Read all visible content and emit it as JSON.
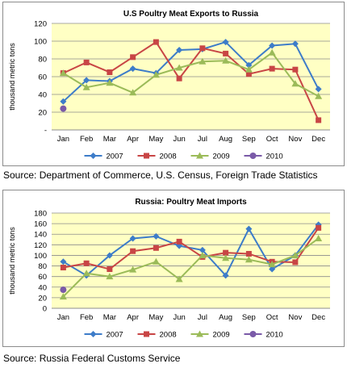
{
  "colors": {
    "plot_bg": "#ffffc4",
    "grid": "#8c8c8c",
    "series": [
      "#3d7cc9",
      "#c84545",
      "#9bbb59",
      "#7a5aa8"
    ]
  },
  "chart_data": [
    {
      "type": "line",
      "title": "U.S Poultry Meat Exports to Russia",
      "ylabel": "thousand metric tons",
      "xlabel": "",
      "ylim": [
        0,
        120
      ],
      "yticks": [
        0,
        20,
        40,
        60,
        80,
        100,
        120
      ],
      "ytick_labels": [
        "-",
        "20",
        "40",
        "60",
        "80",
        "100",
        "120"
      ],
      "grid": true,
      "legend_position": "bottom",
      "categories": [
        "Jan",
        "Feb",
        "Mar",
        "Apr",
        "May",
        "Jun",
        "Jul",
        "Aug",
        "Sep",
        "Oct",
        "Nov",
        "Dec"
      ],
      "series": [
        {
          "name": "2007",
          "marker": "diamond",
          "values": [
            32,
            56,
            55,
            69,
            64,
            90,
            91,
            99,
            73,
            95,
            97,
            46
          ]
        },
        {
          "name": "2008",
          "marker": "square",
          "values": [
            64,
            76,
            65,
            82,
            99,
            58,
            92,
            86,
            63,
            69,
            68,
            11
          ]
        },
        {
          "name": "2009",
          "marker": "triangle",
          "values": [
            64,
            48,
            53,
            42,
            62,
            70,
            77,
            78,
            68,
            87,
            52,
            38
          ]
        },
        {
          "name": "2010",
          "marker": "circle",
          "values": [
            24,
            null,
            null,
            null,
            null,
            null,
            null,
            null,
            null,
            null,
            null,
            null
          ]
        }
      ],
      "source": "Source: Department of Commerce, U.S. Census, Foreign Trade Statistics"
    },
    {
      "type": "line",
      "title": "Russia: Poultry Meat Imports",
      "ylabel": "thousand metric tons",
      "xlabel": "",
      "ylim": [
        0,
        180
      ],
      "yticks": [
        0,
        20,
        40,
        60,
        80,
        100,
        120,
        140,
        160,
        180
      ],
      "ytick_labels": [
        "0",
        "20",
        "40",
        "60",
        "80",
        "100",
        "120",
        "140",
        "160",
        "180"
      ],
      "grid": true,
      "legend_position": "bottom",
      "categories": [
        "Jan",
        "Feb",
        "Mar",
        "Apr",
        "May",
        "Jun",
        "Jul",
        "Aug",
        "Sep",
        "Oct",
        "Nov",
        "Dec"
      ],
      "series": [
        {
          "name": "2007",
          "marker": "diamond",
          "values": [
            88,
            62,
            100,
            132,
            136,
            118,
            110,
            62,
            150,
            74,
            100,
            158
          ]
        },
        {
          "name": "2008",
          "marker": "square",
          "values": [
            77,
            85,
            74,
            108,
            114,
            126,
            97,
            105,
            103,
            88,
            87,
            152
          ]
        },
        {
          "name": "2009",
          "marker": "triangle",
          "values": [
            22,
            66,
            60,
            73,
            88,
            55,
            100,
            95,
            92,
            83,
            100,
            132
          ]
        },
        {
          "name": "2010",
          "marker": "circle",
          "values": [
            35,
            null,
            null,
            null,
            null,
            null,
            null,
            null,
            null,
            null,
            null,
            null
          ]
        }
      ],
      "source": "Source: Russia Federal Customs Service"
    }
  ]
}
